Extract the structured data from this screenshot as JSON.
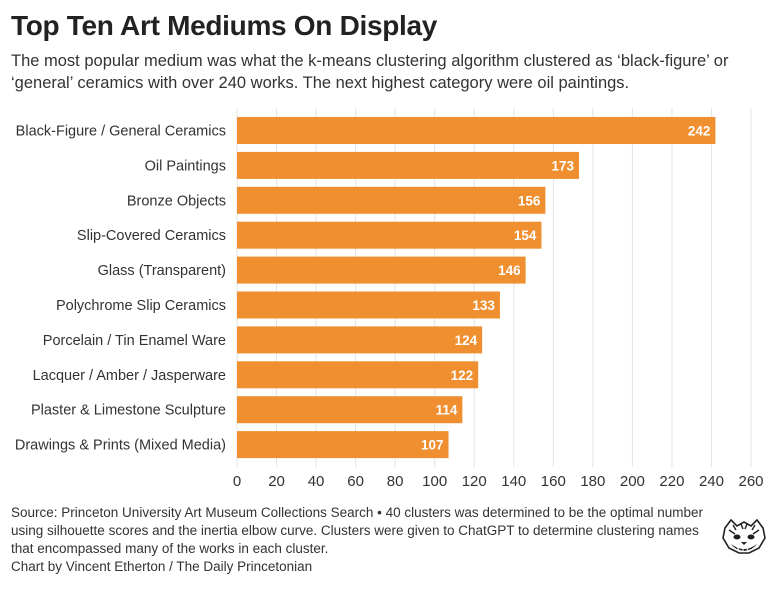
{
  "title": "Top Ten Art Mediums On Display",
  "subtitle": "The most popular medium was what the k-means clustering algorithm clustered as ‘black-figure’ or ‘general’ ceramics with over 240 works. The next highest category were oil paintings.",
  "footer": {
    "source": "Source: Princeton University Art Museum Collections Search • 40 clusters was determined to be the optimal number using silhouette scores and the inertia elbow curve. Clusters were given to ChatGPT to determine clustering names that encompassed many of the works in each cluster.",
    "credit": "Chart by Vincent Etherton / The Daily Princetonian"
  },
  "logo_icon": "daily-princetonian-tiger-icon",
  "colors": {
    "bar": "#EF8F2F",
    "grid": "#E3E3E3",
    "text": "#333333",
    "value_label": "#FFFFFF"
  },
  "chart_data": {
    "type": "bar",
    "orientation": "horizontal",
    "categories": [
      "Black-Figure / General Ceramics",
      "Oil Paintings",
      "Bronze Objects",
      "Slip-Covered Ceramics",
      "Glass (Transparent)",
      "Polychrome Slip Ceramics",
      "Porcelain / Tin Enamel Ware",
      "Lacquer / Amber / Jasperware",
      "Plaster & Limestone Sculpture",
      "Drawings & Prints (Mixed Media)"
    ],
    "values": [
      242,
      173,
      156,
      154,
      146,
      133,
      124,
      122,
      114,
      107
    ],
    "xlim": [
      0,
      260
    ],
    "xticks": [
      0,
      20,
      40,
      60,
      80,
      100,
      120,
      140,
      160,
      180,
      200,
      220,
      240,
      260
    ],
    "xlabel": "",
    "ylabel": "",
    "grid": true,
    "data_labels": true
  }
}
